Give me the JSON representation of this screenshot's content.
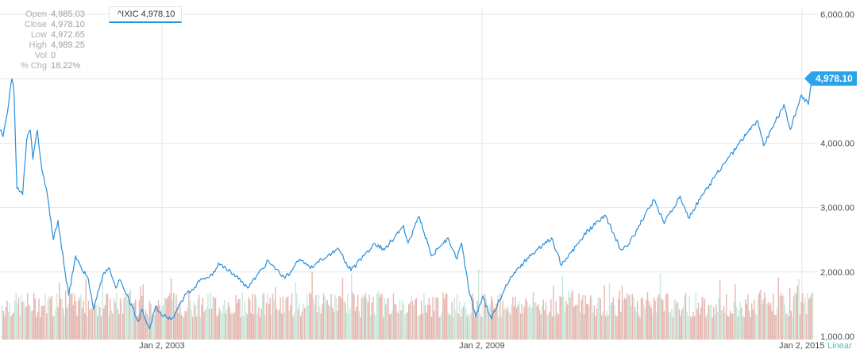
{
  "chart_data": {
    "type": "line",
    "title": "",
    "symbol": "^IXIC",
    "series": [
      {
        "name": "^IXIC",
        "color": "#2a8fdc",
        "points": [
          [
            "1999-12-20",
            4200
          ],
          [
            "2000-01-10",
            4100
          ],
          [
            "2000-02-10",
            4500
          ],
          [
            "2000-03-10",
            5000
          ],
          [
            "2000-03-25",
            4780
          ],
          [
            "2000-04-14",
            3300
          ],
          [
            "2000-05-23",
            3200
          ],
          [
            "2000-06-20",
            4050
          ],
          [
            "2000-07-15",
            4200
          ],
          [
            "2000-08-01",
            3750
          ],
          [
            "2000-09-01",
            4200
          ],
          [
            "2000-10-01",
            3600
          ],
          [
            "2000-11-01",
            3300
          ],
          [
            "2000-12-20",
            2500
          ],
          [
            "2001-01-20",
            2800
          ],
          [
            "2001-03-10",
            2000
          ],
          [
            "2001-04-04",
            1640
          ],
          [
            "2001-05-20",
            2250
          ],
          [
            "2001-07-01",
            2050
          ],
          [
            "2001-08-15",
            1900
          ],
          [
            "2001-09-21",
            1420
          ],
          [
            "2001-10-20",
            1700
          ],
          [
            "2001-12-01",
            1990
          ],
          [
            "2002-01-10",
            2050
          ],
          [
            "2002-02-20",
            1750
          ],
          [
            "2002-03-20",
            1880
          ],
          [
            "2002-05-01",
            1650
          ],
          [
            "2002-06-15",
            1450
          ],
          [
            "2002-07-24",
            1230
          ],
          [
            "2002-08-20",
            1420
          ],
          [
            "2002-09-20",
            1200
          ],
          [
            "2002-10-09",
            1114
          ],
          [
            "2002-11-20",
            1470
          ],
          [
            "2002-12-30",
            1330
          ],
          [
            "2003-03-11",
            1270
          ],
          [
            "2003-06-01",
            1600
          ],
          [
            "2003-09-15",
            1850
          ],
          [
            "2003-12-31",
            2000
          ],
          [
            "2004-01-25",
            2140
          ],
          [
            "2004-04-15",
            2020
          ],
          [
            "2004-08-12",
            1750
          ],
          [
            "2004-12-31",
            2175
          ],
          [
            "2005-04-25",
            1900
          ],
          [
            "2005-08-01",
            2200
          ],
          [
            "2005-10-15",
            2050
          ],
          [
            "2006-04-20",
            2370
          ],
          [
            "2006-07-20",
            2020
          ],
          [
            "2006-12-31",
            2440
          ],
          [
            "2007-03-05",
            2340
          ],
          [
            "2007-07-15",
            2720
          ],
          [
            "2007-08-15",
            2450
          ],
          [
            "2007-10-31",
            2860
          ],
          [
            "2008-01-22",
            2250
          ],
          [
            "2008-05-15",
            2530
          ],
          [
            "2008-07-15",
            2200
          ],
          [
            "2008-08-15",
            2450
          ],
          [
            "2008-10-10",
            1650
          ],
          [
            "2008-11-20",
            1300
          ],
          [
            "2009-01-06",
            1630
          ],
          [
            "2009-03-09",
            1270
          ],
          [
            "2009-06-15",
            1800
          ],
          [
            "2009-10-15",
            2150
          ],
          [
            "2010-04-23",
            2530
          ],
          [
            "2010-07-01",
            2100
          ],
          [
            "2010-12-31",
            2650
          ],
          [
            "2011-04-30",
            2870
          ],
          [
            "2011-08-10",
            2350
          ],
          [
            "2011-10-01",
            2420
          ],
          [
            "2012-03-26",
            3120
          ],
          [
            "2012-06-04",
            2750
          ],
          [
            "2012-09-20",
            3180
          ],
          [
            "2012-11-15",
            2840
          ],
          [
            "2013-05-20",
            3500
          ],
          [
            "2013-12-31",
            4180
          ],
          [
            "2014-03-05",
            4350
          ],
          [
            "2014-04-15",
            3960
          ],
          [
            "2014-09-01",
            4600
          ],
          [
            "2014-10-15",
            4210
          ],
          [
            "2014-12-31",
            4750
          ],
          [
            "2015-02-15",
            4600
          ],
          [
            "2015-03-10",
            4960
          ],
          [
            "2015-03-20",
            4978
          ]
        ]
      }
    ],
    "x_ticks": [
      "Jan 2, 2003",
      "Jan 2, 2009",
      "Jan 2, 2015"
    ],
    "y_ticks": [
      "1,000.00",
      "2,000.00",
      "3,000.00",
      "4,000.00",
      "6,000.00"
    ],
    "y_scale": "Linear",
    "xlim": [
      "1999-12-20",
      "2015-04-22"
    ],
    "ylim": [
      950,
      6100
    ],
    "grid": true,
    "volume_bars": true,
    "last_value_label": "4,978.10"
  },
  "stats": {
    "rows": [
      {
        "label": "Open",
        "value": "4,985.03"
      },
      {
        "label": "Close",
        "value": "4,978.10"
      },
      {
        "label": "Low",
        "value": "4,972.65"
      },
      {
        "label": "High",
        "value": "4,989.25"
      },
      {
        "label": "Vol",
        "value": "0"
      },
      {
        "label": "% Chg",
        "value": "18.22%"
      }
    ]
  },
  "legend": {
    "text": "^IXIC 4,978.10"
  },
  "colors": {
    "line": "#2a8fdc",
    "grid": "#e6e6e6",
    "volume_up": "#bfe3d3",
    "volume_down": "#e3aaa3",
    "price_tag": "#29a3ea",
    "axis_text": "#4d4d4d",
    "scale_label": "#4fc3b5"
  }
}
